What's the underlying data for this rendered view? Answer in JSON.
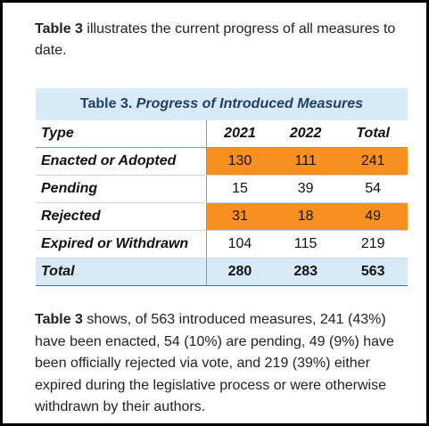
{
  "intro": {
    "bold": "Table 3",
    "text": " illustrates the current progress of all measures to date."
  },
  "table": {
    "title": {
      "label": "Table 3.",
      "name": "Progress of Introduced Measures"
    },
    "header": [
      "Type",
      "2021",
      "2022",
      "Total"
    ],
    "rows": [
      [
        "Enacted or Adopted",
        130,
        111,
        241
      ],
      [
        "Pending",
        15,
        39,
        54
      ],
      [
        "Rejected",
        31,
        18,
        49
      ],
      [
        "Expired or Withdrawn",
        104,
        115,
        219
      ]
    ],
    "total": [
      "Total",
      280,
      283,
      563
    ]
  },
  "summary": {
    "bold": "Table 3",
    "text": " shows, of 563 introduced measures, 241 (43%) have been enacted, 54 (10%) are pending, 49 (9%) have been officially rejected via vote, and 219 (39%) either expired during the legislative process or were otherwise withdrawn by their authors."
  }
}
